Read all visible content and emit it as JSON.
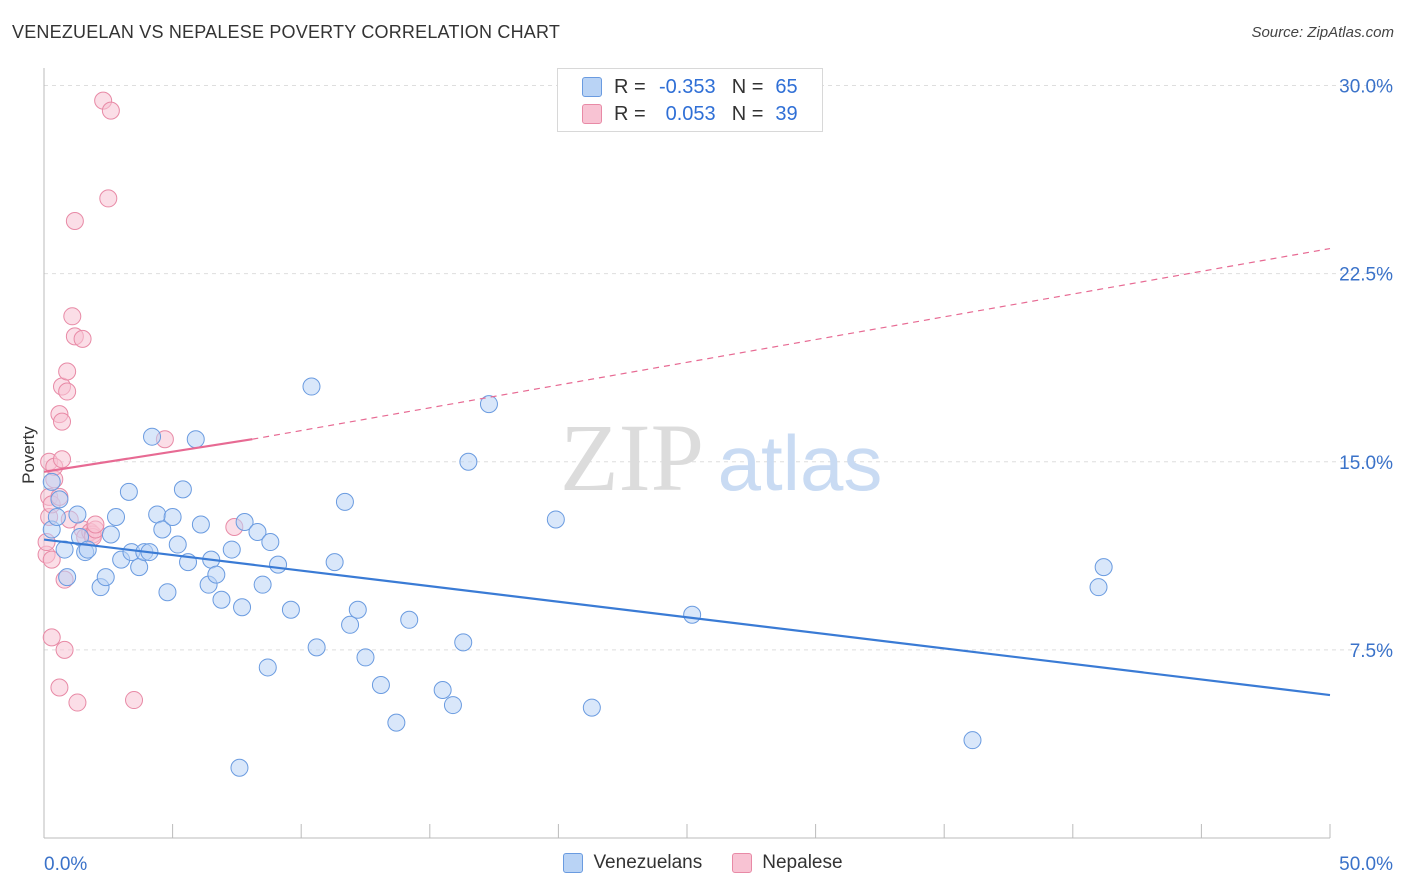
{
  "header": {
    "title": "VENEZUELAN VS NEPALESE POVERTY CORRELATION CHART",
    "source": "Source: ZipAtlas.com"
  },
  "legend": {
    "r_label": "R =",
    "n_label": "N =",
    "rows": [
      {
        "series": "Venezuelans",
        "r": "-0.353",
        "n": "65",
        "fill": "#b9d3f5",
        "stroke": "#6a9be0"
      },
      {
        "series": "Nepalese",
        "r": "0.053",
        "n": "39",
        "fill": "#f8c3d3",
        "stroke": "#e88aa6"
      }
    ]
  },
  "watermark": {
    "zip": "ZIP",
    "atlas": "atlas"
  },
  "colors": {
    "blue": "#3a7bd5",
    "blue_fill": "#b9d3f5",
    "pink": "#e76a93",
    "pink_fill": "#f8c3d3",
    "tick_text": "#3a72c9",
    "grid": "#dedede"
  },
  "chart_data": {
    "type": "scatter",
    "title": "VENEZUELAN VS NEPALESE POVERTY CORRELATION CHART",
    "xlabel": "",
    "ylabel": "Poverty",
    "xlim": [
      0,
      50
    ],
    "ylim": [
      0,
      30.7
    ],
    "x_tick_labels": [
      "0.0%",
      "50.0%"
    ],
    "y_ticks": [
      7.5,
      15.0,
      22.5,
      30.0
    ],
    "y_tick_labels": [
      "7.5%",
      "15.0%",
      "22.5%",
      "30.0%"
    ],
    "series": [
      {
        "name": "Venezuelans",
        "color": "#3a7bd5",
        "points": [
          [
            0.3,
            14.2
          ],
          [
            0.3,
            12.3
          ],
          [
            0.5,
            12.8
          ],
          [
            0.6,
            13.5
          ],
          [
            0.8,
            11.5
          ],
          [
            0.9,
            10.4
          ],
          [
            1.3,
            12.9
          ],
          [
            1.4,
            12.0
          ],
          [
            1.6,
            11.4
          ],
          [
            1.7,
            11.5
          ],
          [
            2.2,
            10.0
          ],
          [
            2.4,
            10.4
          ],
          [
            2.6,
            12.1
          ],
          [
            2.8,
            12.8
          ],
          [
            3.0,
            11.1
          ],
          [
            3.3,
            13.8
          ],
          [
            3.4,
            11.4
          ],
          [
            3.7,
            10.8
          ],
          [
            3.9,
            11.4
          ],
          [
            4.1,
            11.4
          ],
          [
            4.2,
            16.0
          ],
          [
            4.4,
            12.9
          ],
          [
            4.6,
            12.3
          ],
          [
            4.8,
            9.8
          ],
          [
            5.0,
            12.8
          ],
          [
            5.2,
            11.7
          ],
          [
            5.4,
            13.9
          ],
          [
            5.6,
            11.0
          ],
          [
            5.9,
            15.9
          ],
          [
            6.1,
            12.5
          ],
          [
            6.4,
            10.1
          ],
          [
            6.5,
            11.1
          ],
          [
            6.7,
            10.5
          ],
          [
            6.9,
            9.5
          ],
          [
            7.3,
            11.5
          ],
          [
            7.6,
            2.8
          ],
          [
            7.7,
            9.2
          ],
          [
            7.8,
            12.6
          ],
          [
            8.3,
            12.2
          ],
          [
            8.5,
            10.1
          ],
          [
            8.7,
            6.8
          ],
          [
            8.8,
            11.8
          ],
          [
            9.1,
            10.9
          ],
          [
            9.6,
            9.1
          ],
          [
            10.4,
            18.0
          ],
          [
            10.6,
            7.6
          ],
          [
            11.3,
            11.0
          ],
          [
            11.7,
            13.4
          ],
          [
            11.9,
            8.5
          ],
          [
            12.2,
            9.1
          ],
          [
            12.5,
            7.2
          ],
          [
            13.1,
            6.1
          ],
          [
            13.7,
            4.6
          ],
          [
            14.2,
            8.7
          ],
          [
            15.5,
            5.9
          ],
          [
            15.9,
            5.3
          ],
          [
            16.3,
            7.8
          ],
          [
            16.5,
            15.0
          ],
          [
            17.3,
            17.3
          ],
          [
            19.9,
            12.7
          ],
          [
            21.3,
            5.2
          ],
          [
            25.2,
            8.9
          ],
          [
            36.1,
            3.9
          ],
          [
            41.0,
            10.0
          ],
          [
            41.2,
            10.8
          ]
        ],
        "trend": {
          "x": [
            0,
            50
          ],
          "y": [
            11.9,
            5.7
          ]
        }
      },
      {
        "name": "Nepalese",
        "color": "#e76a93",
        "points": [
          [
            0.1,
            11.3
          ],
          [
            0.1,
            11.8
          ],
          [
            0.2,
            12.8
          ],
          [
            0.2,
            13.6
          ],
          [
            0.2,
            15.0
          ],
          [
            0.3,
            8.0
          ],
          [
            0.3,
            11.1
          ],
          [
            0.3,
            13.3
          ],
          [
            0.4,
            14.3
          ],
          [
            0.4,
            14.8
          ],
          [
            0.6,
            6.0
          ],
          [
            0.6,
            13.6
          ],
          [
            0.6,
            16.9
          ],
          [
            0.7,
            16.6
          ],
          [
            0.7,
            15.1
          ],
          [
            0.7,
            18.0
          ],
          [
            0.8,
            10.3
          ],
          [
            0.8,
            7.5
          ],
          [
            0.9,
            18.6
          ],
          [
            0.9,
            17.8
          ],
          [
            1.0,
            12.7
          ],
          [
            1.1,
            20.8
          ],
          [
            1.2,
            20.0
          ],
          [
            1.2,
            24.6
          ],
          [
            1.3,
            5.4
          ],
          [
            1.5,
            19.9
          ],
          [
            1.5,
            12.3
          ],
          [
            1.6,
            12.0
          ],
          [
            1.8,
            12.2
          ],
          [
            1.9,
            12.1
          ],
          [
            1.9,
            12.0
          ],
          [
            2.0,
            12.3
          ],
          [
            2.0,
            12.5
          ],
          [
            2.3,
            29.4
          ],
          [
            2.5,
            25.5
          ],
          [
            2.6,
            29.0
          ],
          [
            3.5,
            5.5
          ],
          [
            4.7,
            15.9
          ],
          [
            7.4,
            12.4
          ]
        ],
        "trend_solid": {
          "x": [
            0,
            8.1
          ],
          "y": [
            14.6,
            15.9
          ]
        },
        "trend_dashed": {
          "x": [
            8.1,
            50
          ],
          "y": [
            15.9,
            23.5
          ]
        }
      }
    ]
  }
}
